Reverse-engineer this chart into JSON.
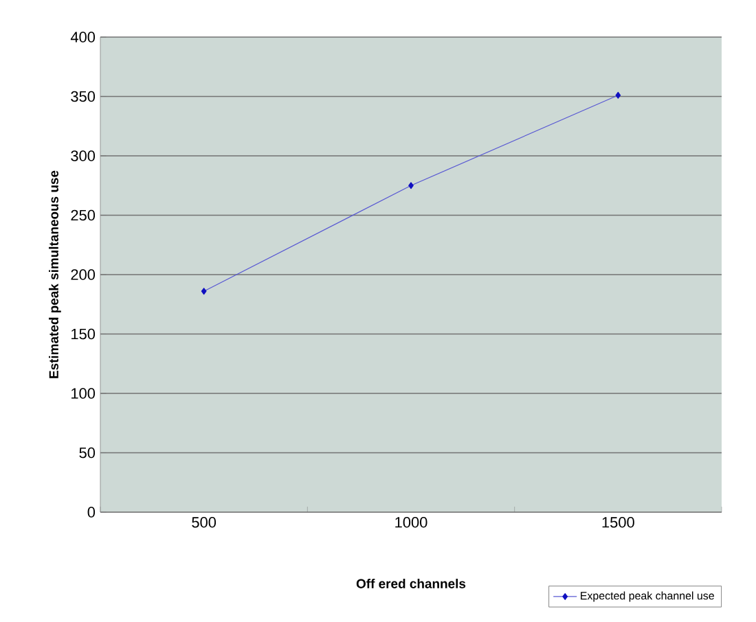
{
  "chart_data": {
    "type": "line",
    "xlabel": "Off ered channels",
    "ylabel": "Estimated peak simultaneous use",
    "categories": [
      "500",
      "1000",
      "1500"
    ],
    "series": [
      {
        "name": "Expected peak channel use",
        "color": "#1010c0",
        "values": [
          186,
          275,
          351
        ]
      }
    ],
    "ylim": [
      0,
      400
    ],
    "yticks": [
      0,
      50,
      100,
      150,
      200,
      250,
      300,
      350,
      400
    ],
    "grid": "y",
    "legend": "bottom right",
    "marker": "diamond",
    "line_style": "solid"
  }
}
